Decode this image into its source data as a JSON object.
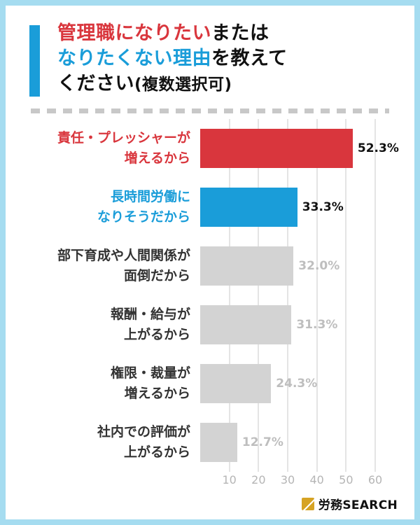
{
  "page": {
    "border_color": "#a5dcf0",
    "background": "#ffffff"
  },
  "header": {
    "accent_color": "#1a9dd9",
    "segments": [
      {
        "text": "管理職になりたい",
        "color": "#d9363d"
      },
      {
        "text": "または",
        "color": "#111111"
      },
      {
        "text": "なりたくない理由",
        "color": "#1a9dd9"
      },
      {
        "text": "を教えて",
        "color": "#111111"
      },
      {
        "text": "ください",
        "color": "#111111"
      },
      {
        "text": "(複数選択可)",
        "color": "#111111"
      }
    ]
  },
  "chart_data": {
    "type": "bar",
    "orientation": "horizontal",
    "title": "管理職になりたいまたはなりたくない理由を教えてください(複数選択可)",
    "categories": [
      "責任・プレッシャーが\n増えるから",
      "長時間労働に\nなりそうだから",
      "部下育成や人間関係が\n面倒だから",
      "報酬・給与が\n上がるから",
      "権限・裁量が\n増えるから",
      "社内での評価が\n上がるから"
    ],
    "values": [
      52.3,
      33.3,
      32.0,
      31.3,
      24.3,
      12.7
    ],
    "value_labels": [
      "52.3%",
      "33.3%",
      "32.0%",
      "31.3%",
      "24.3%",
      "12.7%"
    ],
    "bar_colors": [
      "#d9363d",
      "#1a9dd9",
      "#d3d3d3",
      "#d3d3d3",
      "#d3d3d3",
      "#d3d3d3"
    ],
    "category_colors": [
      "#d9363d",
      "#1a9dd9",
      "#333333",
      "#333333",
      "#333333",
      "#333333"
    ],
    "value_label_colors": [
      "#111111",
      "#111111",
      "#bebebe",
      "#bebebe",
      "#bebebe",
      "#bebebe"
    ],
    "xlabel": "",
    "ylabel": "",
    "xlim": [
      0,
      60
    ],
    "xticks": [
      "10",
      "20",
      "30",
      "40",
      "50",
      "60"
    ],
    "grid": true,
    "legend": false
  },
  "footer": {
    "brand_bold": "労務",
    "brand_rest": "SEARCH",
    "logo_color": "#d6a324"
  }
}
